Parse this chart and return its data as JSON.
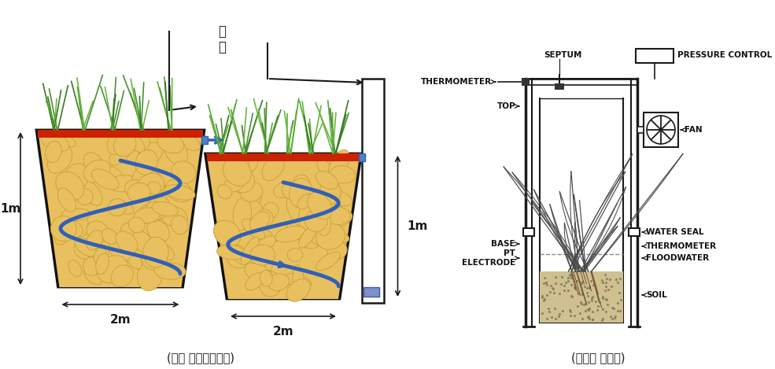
{
  "bg_color": "#ffffff",
  "left_caption": "(현장 폐양액치리장)",
  "right_caption": "(체임버 구성도)",
  "chamber_label": "체\n버",
  "dim_1m_left": "1m",
  "dim_2m_left": "2m",
  "dim_1m_right": "1m",
  "dim_2m_right": "2m",
  "line_color": "#1a1a1a",
  "blue_flow": "#3060b8",
  "red_band": "#cc2200",
  "gold_rock": "#e8c060",
  "gold_rock_edge": "#c8a030",
  "green_plant": "#4a8a30"
}
